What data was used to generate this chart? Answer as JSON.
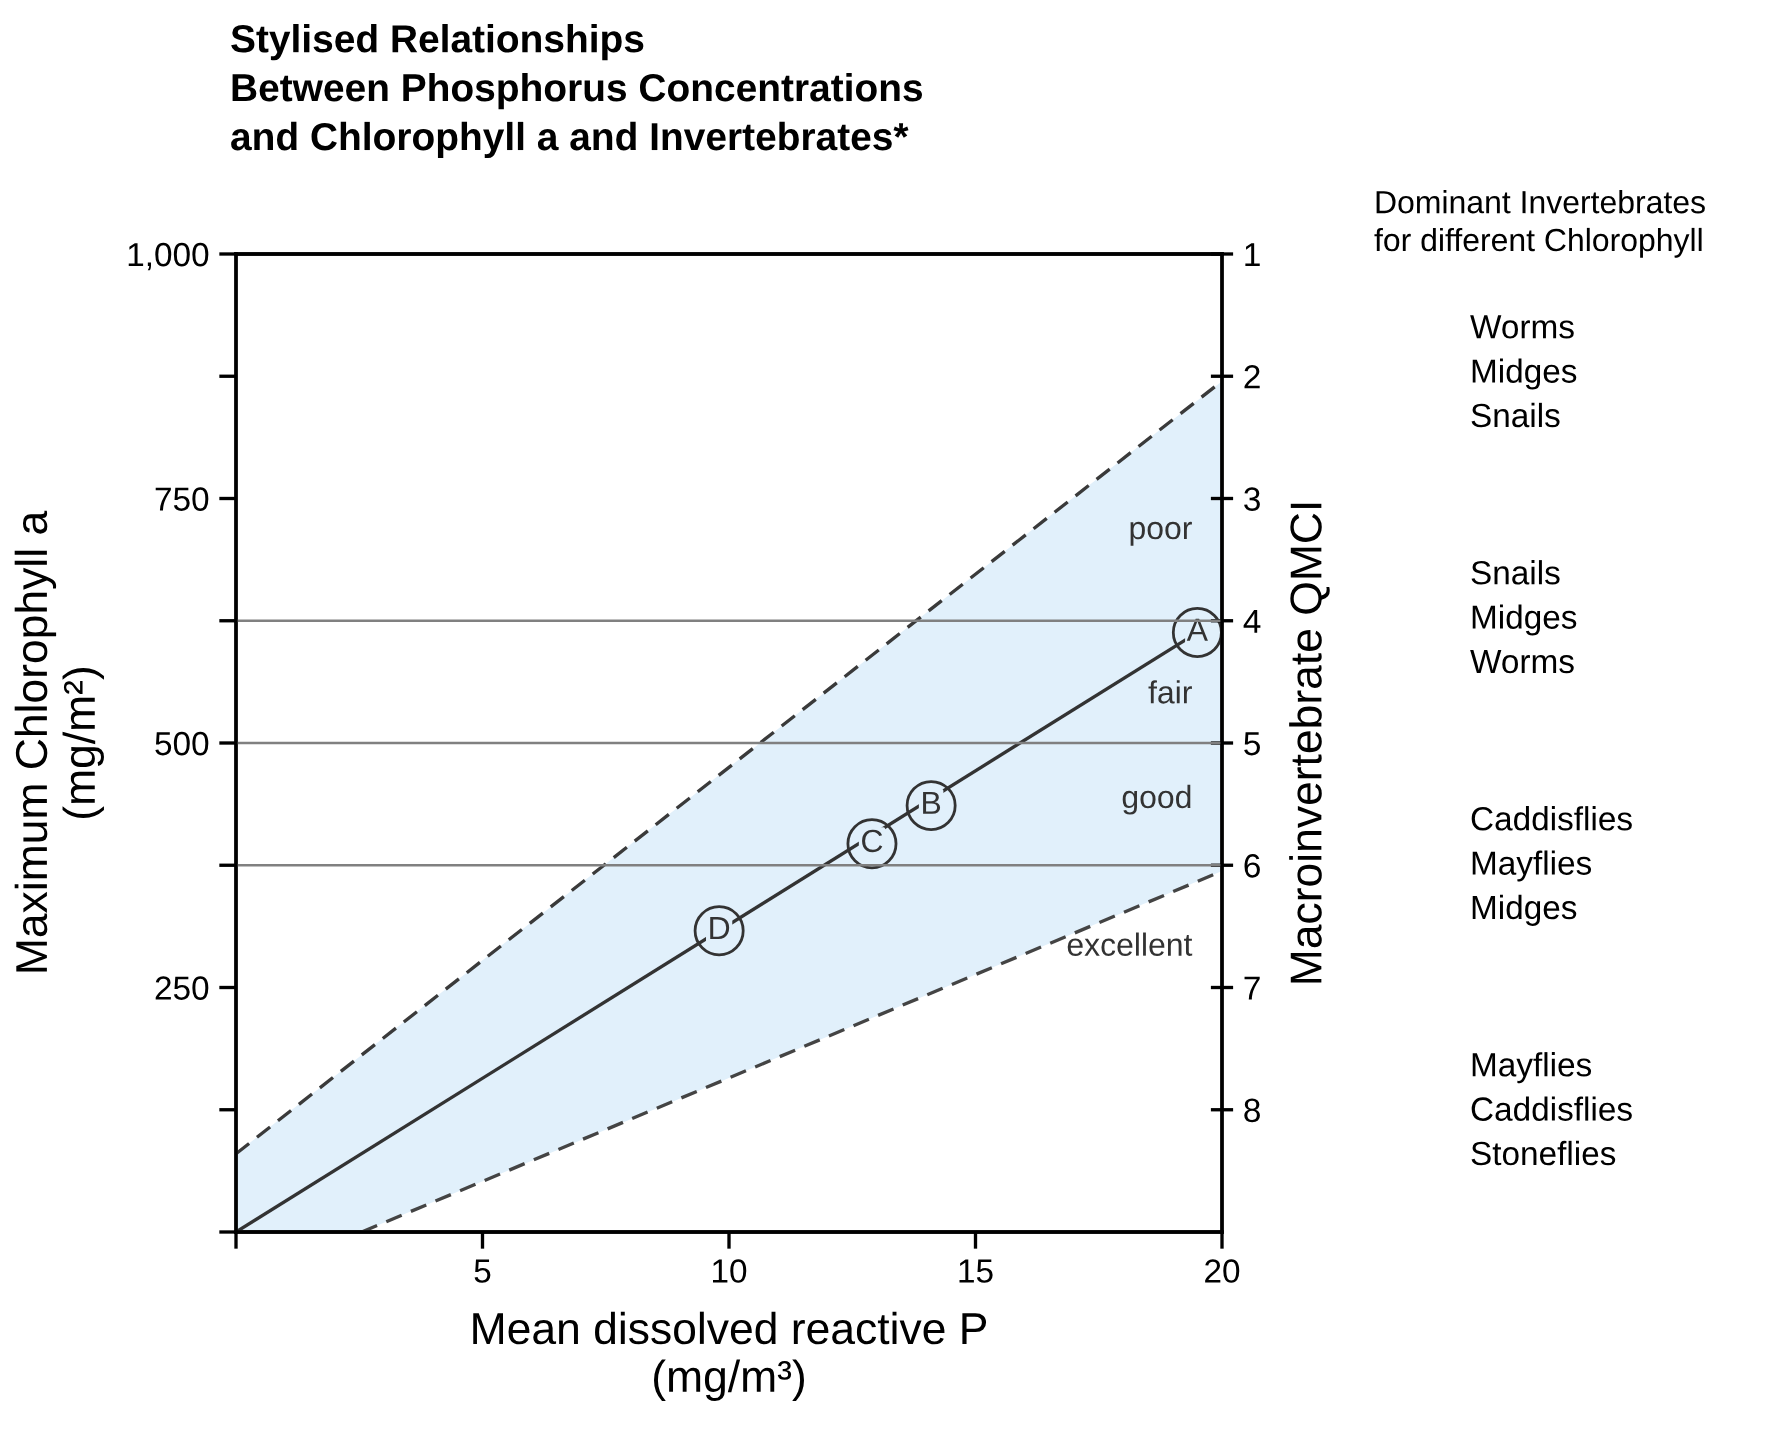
{
  "chart_data": {
    "type": "line",
    "title": "Stylised Relationships\nBetween Phosphorus Concentrations\nand Chlorophyll a and Invertebrates*",
    "xlabel": "Mean dissolved reactive P\n(mg/m³)",
    "ylabel": "Maximum Chlorophyll a\n(mg/m²)",
    "y2label": "Macroinvertebrate QMCI",
    "xlim": [
      0,
      20
    ],
    "xticks": [
      {
        "value": 0,
        "label": null
      },
      5,
      10,
      15,
      20
    ],
    "ylim": [
      0,
      1000
    ],
    "yticks": [
      {
        "value": 0,
        "label": null
      },
      {
        "value": 125,
        "label": null
      },
      250,
      {
        "value": 375,
        "label": null
      },
      500,
      {
        "value": 625,
        "label": null
      },
      750,
      {
        "value": 875,
        "label": null
      },
      {
        "value": 1000,
        "label": "1,000"
      }
    ],
    "y2lim": [
      9,
      1
    ],
    "y2ticks": [
      1,
      2,
      3,
      4,
      5,
      6,
      7,
      8
    ],
    "grid": false,
    "series": [
      {
        "color": "#333333",
        "line_style": "solid",
        "x": [
          0,
          19.5
        ],
        "values": [
          0,
          613
        ]
      },
      {
        "color": "#3a3a3a",
        "line_style": "dashed",
        "x": [
          0,
          2.55,
          20
        ],
        "values": [
          80,
          181,
          870
        ],
        "lower": [
          0,
          0,
          369
        ],
        "upper": [
          80,
          181,
          870
        ]
      },
      {
        "color": "#444444",
        "line_style": "dashed",
        "x": [
          2.55,
          20
        ],
        "values": [
          0,
          369
        ]
      },
      {
        "type": "scatter",
        "color": "#333333",
        "marker": "circle",
        "x": [
          19.5,
          14.1,
          12.9,
          9.8
        ],
        "values": [
          613,
          436,
          397,
          308
        ]
      }
    ],
    "ref_lines": [
      {
        "axis": "y2",
        "value": 4,
        "color": "#808080"
      },
      {
        "axis": "y2",
        "value": 5,
        "color": "#808080"
      },
      {
        "axis": "y2",
        "value": 6,
        "color": "#808080"
      }
    ],
    "annotations": [
      {
        "text": "A",
        "x": 19.5,
        "y": 613
      },
      {
        "text": "B",
        "x": 14.1,
        "y": 436
      },
      {
        "text": "C",
        "x": 12.9,
        "y": 397
      },
      {
        "text": "D",
        "x": 9.8,
        "y": 308
      },
      "poor",
      "fair",
      "good",
      "excellent",
      "Dominant Invertebrates\nfor different Chlorophyll",
      "Worms\nMidges\nSnails",
      "Snails\nMidges\nWorms",
      "Caddisflies\nMayflies\nMidges",
      "Mayflies\nCaddisflies\nStoneflies"
    ]
  }
}
